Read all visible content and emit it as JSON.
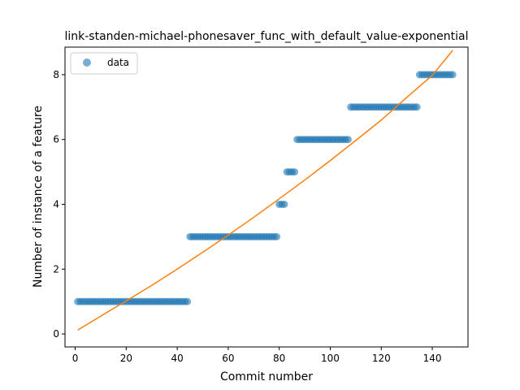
{
  "chart_data": {
    "type": "scatter",
    "title": "link-standen-michael-phonesaver_func_with_default_value-exponential",
    "xlabel": "Commit number",
    "ylabel": "Number of instance of a feature",
    "xlim": [
      -4,
      154
    ],
    "ylim": [
      -0.4,
      8.85
    ],
    "xticks": [
      0,
      20,
      40,
      60,
      80,
      100,
      120,
      140
    ],
    "yticks": [
      0,
      2,
      4,
      6,
      8
    ],
    "grid": false,
    "legend": {
      "position": "top-left",
      "entries": [
        "data"
      ]
    },
    "colors": {
      "data": "#1f77b4",
      "fit": "#ff7f0e"
    },
    "series": [
      {
        "name": "data",
        "kind": "scatter",
        "segments": [
          {
            "x_start": 1,
            "x_end": 44,
            "y": 1
          },
          {
            "x_start": 45,
            "x_end": 79,
            "y": 3
          },
          {
            "x_start": 80,
            "x_end": 82,
            "y": 4
          },
          {
            "x_start": 83,
            "x_end": 86,
            "y": 5
          },
          {
            "x_start": 87,
            "x_end": 107,
            "y": 6
          },
          {
            "x_start": 108,
            "x_end": 134,
            "y": 7
          },
          {
            "x_start": 135,
            "x_end": 148,
            "y": 8
          }
        ]
      },
      {
        "kind": "line",
        "x": [
          1,
          10,
          20,
          30,
          40,
          50,
          60,
          70,
          80,
          90,
          100,
          110,
          120,
          130,
          140,
          148
        ],
        "y": [
          0.12,
          0.55,
          1.02,
          1.5,
          2.0,
          2.52,
          3.05,
          3.6,
          4.17,
          4.75,
          5.35,
          5.97,
          6.6,
          7.3,
          7.98,
          8.75
        ]
      }
    ]
  }
}
